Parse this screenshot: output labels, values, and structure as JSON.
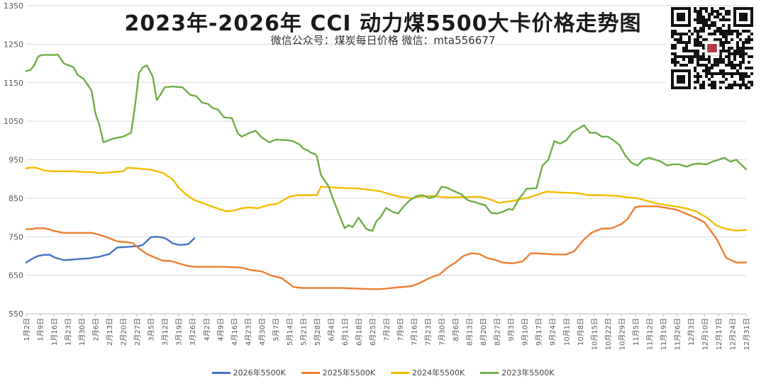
{
  "title": "2023年-2026年   CCI  动力煤5500大卡价格走势图",
  "subtitle": "微信公众号：煤炭每日价格  微信：mta556677",
  "qr_label": "微信二维码",
  "chart_data": {
    "type": "line",
    "title": "2023年-2026年 CCI 动力煤5500大卡价格走势图",
    "xlabel": "",
    "ylabel": "",
    "ylim": [
      550,
      1350
    ],
    "y_ticks": [
      550,
      650,
      750,
      850,
      950,
      1050,
      1150,
      1250,
      1350
    ],
    "x_range_days": [
      1,
      365
    ],
    "x_tick_labels": [
      "1月2日",
      "1月9日",
      "1月16日",
      "1月23日",
      "1月30日",
      "2月6日",
      "2月13日",
      "2月20日",
      "2月27日",
      "3月5日",
      "3月12日",
      "3月19日",
      "3月26日",
      "4月2日",
      "4月9日",
      "4月16日",
      "4月23日",
      "4月30日",
      "5月7日",
      "5月14日",
      "5月21日",
      "5月28日",
      "6月4日",
      "6月11日",
      "6月18日",
      "6月25日",
      "7月2日",
      "7月9日",
      "7月16日",
      "7月23日",
      "7月30日",
      "8月6日",
      "8月13日",
      "8月20日",
      "8月27日",
      "9月3日",
      "9月10日",
      "9月17日",
      "9月24日",
      "10月1日",
      "10月8日",
      "10月15日",
      "10月22日",
      "10月29日",
      "11月5日",
      "11月12日",
      "11月19日",
      "11月26日",
      "12月3日",
      "12月10日",
      "12月17日",
      "12月24日",
      "12月31日"
    ],
    "legend_position": "bottom",
    "series": [
      {
        "name": "2026年5500K",
        "color": "#4472C4",
        "x": [
          1,
          4,
          7,
          10,
          13,
          15,
          20,
          25,
          30,
          33,
          35,
          38,
          40,
          43,
          47,
          50,
          53,
          56,
          58,
          60,
          64,
          67,
          70,
          72,
          75,
          78,
          80,
          83,
          86
        ],
        "y": [
          683,
          693,
          700,
          703,
          703,
          697,
          689,
          691,
          693,
          694,
          696,
          698,
          701,
          705,
          722,
          723,
          724,
          725,
          726,
          729,
          749,
          750,
          748,
          744,
          733,
          729,
          729,
          731,
          746
        ]
      },
      {
        "name": "2025年5500K",
        "color": "#ED7D31",
        "x": [
          1,
          4,
          6,
          10,
          12,
          15,
          20,
          30,
          34,
          38,
          42,
          47,
          52,
          55,
          58,
          62,
          66,
          70,
          74,
          78,
          82,
          86,
          90,
          100,
          110,
          115,
          120,
          125,
          130,
          134,
          136,
          140,
          150,
          160,
          170,
          175,
          180,
          186,
          190,
          196,
          200,
          205,
          210,
          214,
          218,
          222,
          226,
          230,
          234,
          238,
          242,
          247,
          252,
          256,
          262,
          268,
          274,
          278,
          283,
          287,
          292,
          297,
          302,
          305,
          309,
          312,
          320,
          330,
          340,
          344,
          350,
          355,
          360,
          365
        ],
        "y": [
          770,
          770,
          772,
          772,
          770,
          765,
          760,
          760,
          760,
          755,
          748,
          738,
          736,
          733,
          720,
          705,
          696,
          688,
          687,
          681,
          675,
          672,
          672,
          672,
          670,
          663,
          660,
          649,
          643,
          628,
          620,
          617,
          617,
          617,
          615,
          614,
          614,
          617,
          619,
          622,
          630,
          643,
          652,
          670,
          683,
          700,
          707,
          705,
          695,
          690,
          683,
          681,
          686,
          707,
          706,
          704,
          704,
          712,
          743,
          761,
          771,
          772,
          783,
          796,
          827,
          829,
          829,
          820,
          798,
          787,
          745,
          695,
          683,
          683
        ]
      },
      {
        "name": "2024年5500K",
        "color": "#F2BC00",
        "x": [
          1,
          4,
          6,
          8,
          10,
          12,
          15,
          20,
          25,
          30,
          34,
          38,
          45,
          50,
          52,
          56,
          60,
          64,
          70,
          75,
          78,
          82,
          86,
          90,
          94,
          98,
          102,
          106,
          110,
          114,
          118,
          124,
          128,
          134,
          138,
          142,
          145,
          148,
          150,
          155,
          160,
          170,
          180,
          185,
          190,
          196,
          200,
          206,
          214,
          225,
          230,
          235,
          240,
          248,
          256,
          260,
          264,
          270,
          280,
          285,
          290,
          300,
          305,
          310,
          320,
          325,
          330,
          335,
          340,
          345,
          350,
          355,
          360,
          365
        ],
        "y": [
          928,
          930,
          929,
          926,
          922,
          921,
          920,
          920,
          920,
          918,
          918,
          915,
          918,
          920,
          929,
          928,
          926,
          924,
          916,
          899,
          878,
          859,
          845,
          838,
          830,
          823,
          816,
          818,
          824,
          826,
          824,
          833,
          836,
          854,
          858,
          858,
          858,
          858,
          880,
          878,
          877,
          875,
          868,
          860,
          854,
          850,
          854,
          856,
          852,
          853,
          854,
          848,
          838,
          844,
          853,
          860,
          867,
          865,
          863,
          858,
          858,
          856,
          852,
          850,
          836,
          832,
          828,
          823,
          815,
          800,
          779,
          770,
          766,
          768
        ]
      },
      {
        "name": "2023年5500K",
        "color": "#70AD47",
        "x": [
          1,
          3,
          5,
          7,
          9,
          12,
          15,
          17,
          20,
          25,
          27,
          30,
          34,
          36,
          38,
          40,
          45,
          50,
          54,
          56,
          58,
          60,
          62,
          65,
          67,
          69,
          71,
          75,
          80,
          84,
          87,
          90,
          93,
          95,
          98,
          101,
          105,
          108,
          110,
          114,
          117,
          120,
          124,
          127,
          129,
          131,
          133,
          136,
          139,
          141,
          143,
          145,
          147,
          148,
          150,
          152,
          154,
          156,
          159,
          162,
          164,
          166,
          169,
          171,
          173,
          176,
          178,
          180,
          183,
          186,
          189,
          192,
          195,
          198,
          201,
          203,
          205,
          208,
          211,
          214,
          217,
          221,
          224,
          226,
          228,
          230,
          233,
          236,
          239,
          242,
          245,
          247,
          250,
          252,
          254,
          256,
          259,
          262,
          265,
          268,
          271,
          274,
          277,
          280,
          283,
          286,
          289,
          292,
          295,
          298,
          301,
          304,
          307,
          310,
          313,
          316,
          319,
          322,
          325,
          328,
          331,
          335,
          338,
          341,
          345,
          348,
          351,
          354,
          357,
          360,
          365
        ],
        "y": [
          1180,
          1183,
          1195,
          1218,
          1222,
          1222,
          1222,
          1223,
          1200,
          1190,
          1170,
          1160,
          1130,
          1070,
          1040,
          995,
          1005,
          1010,
          1020,
          1090,
          1175,
          1190,
          1195,
          1165,
          1105,
          1120,
          1138,
          1140,
          1138,
          1118,
          1115,
          1098,
          1095,
          1085,
          1080,
          1060,
          1058,
          1018,
          1010,
          1020,
          1025,
          1008,
          995,
          1002,
          1002,
          1001,
          1001,
          998,
          990,
          979,
          975,
          968,
          965,
          958,
          910,
          895,
          880,
          850,
          810,
          772,
          780,
          775,
          800,
          785,
          770,
          765,
          790,
          800,
          825,
          815,
          810,
          830,
          845,
          855,
          858,
          855,
          850,
          855,
          880,
          877,
          869,
          860,
          846,
          842,
          840,
          836,
          832,
          812,
          810,
          815,
          822,
          820,
          847,
          860,
          875,
          875,
          876,
          935,
          950,
          998,
          992,
          1000,
          1020,
          1030,
          1040,
          1020,
          1020,
          1010,
          1010,
          1000,
          988,
          960,
          942,
          935,
          950,
          955,
          950,
          945,
          935,
          938,
          938,
          932,
          938,
          940,
          938,
          945,
          950,
          955,
          945,
          950,
          925
        ]
      }
    ]
  }
}
